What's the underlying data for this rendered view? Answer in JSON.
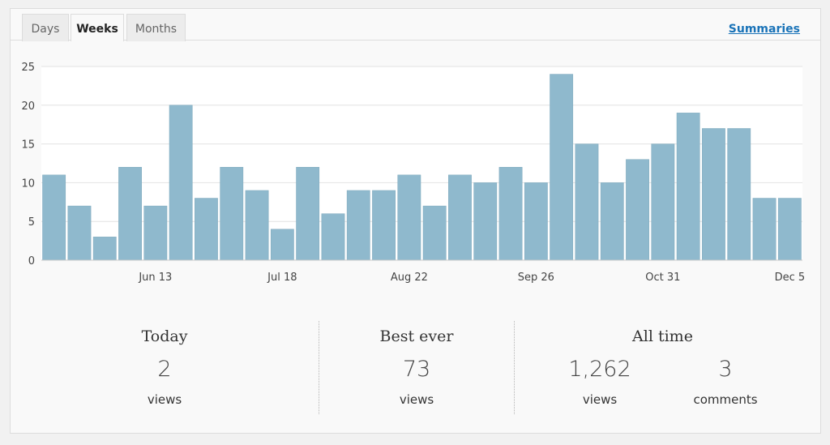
{
  "tabs": [
    {
      "label": "Days",
      "active": false
    },
    {
      "label": "Weeks",
      "active": true
    },
    {
      "label": "Months",
      "active": false
    }
  ],
  "summaries_label": "Summaries",
  "colors": {
    "bar": "#8fb9cd",
    "grid": "#e2e2e2",
    "link": "#1a73b8"
  },
  "chart_data": {
    "type": "bar",
    "values": [
      11,
      7,
      3,
      12,
      7,
      20,
      8,
      12,
      9,
      4,
      12,
      6,
      9,
      9,
      11,
      7,
      11,
      10,
      12,
      10,
      24,
      15,
      10,
      13,
      15,
      19,
      17,
      17,
      8,
      8
    ],
    "x_tick_labels": [
      {
        "index": 4,
        "label": "Jun 13"
      },
      {
        "index": 9,
        "label": "Jul 18"
      },
      {
        "index": 14,
        "label": "Aug 22"
      },
      {
        "index": 19,
        "label": "Sep 26"
      },
      {
        "index": 24,
        "label": "Oct 31"
      },
      {
        "index": 29,
        "label": "Dec 5"
      }
    ],
    "y_ticks": [
      0,
      5,
      10,
      15,
      20,
      25
    ],
    "ylim": [
      0,
      25
    ],
    "grid": true
  },
  "stats": {
    "today": {
      "heading": "Today",
      "value": "2",
      "unit": "views"
    },
    "best": {
      "heading": "Best ever",
      "value": "73",
      "unit": "views"
    },
    "alltime": {
      "heading": "All time",
      "views_value": "1,262",
      "views_unit": "views",
      "comments_value": "3",
      "comments_unit": "comments"
    }
  }
}
